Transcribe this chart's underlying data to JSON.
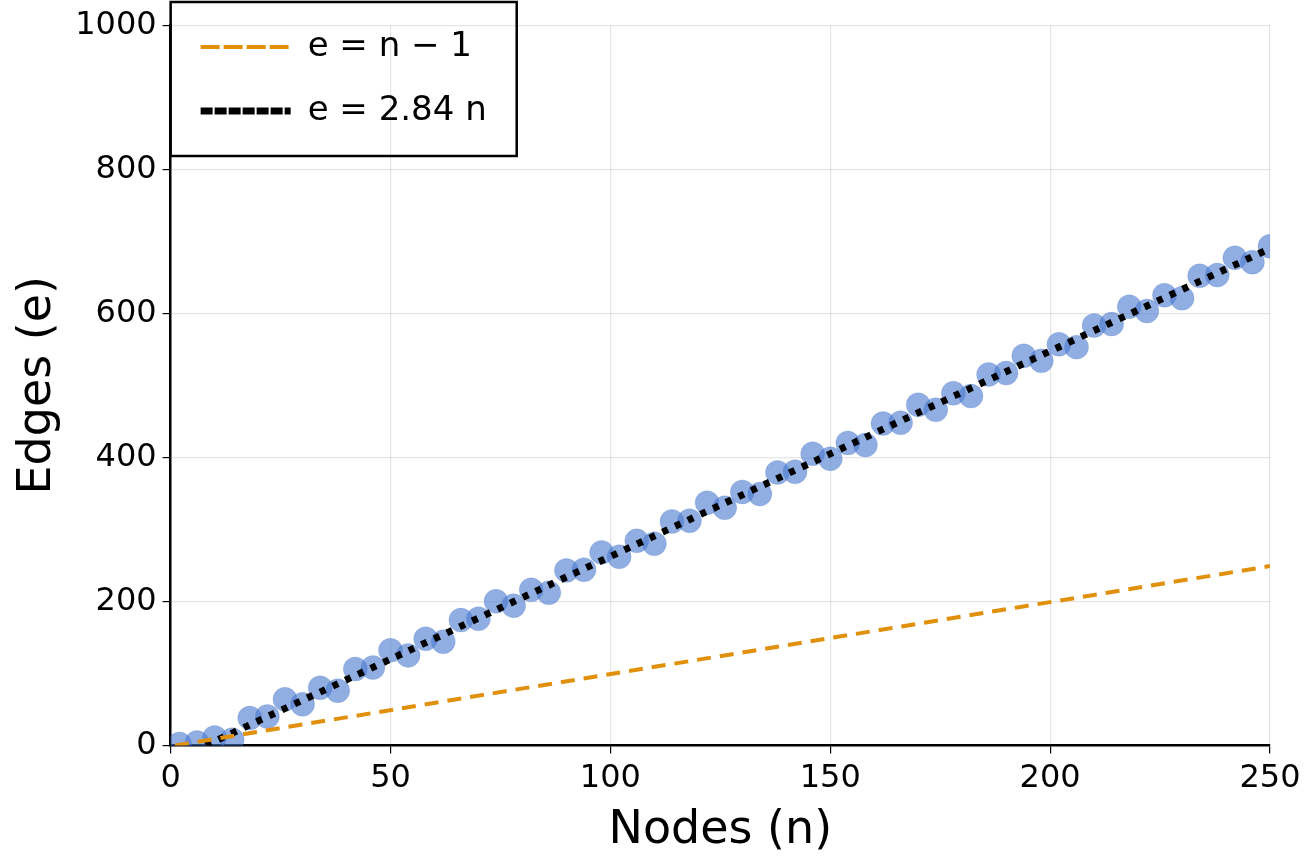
{
  "chart_data": {
    "type": "scatter",
    "xlabel": "Nodes (n)",
    "ylabel": "Edges (e)",
    "xlim": [
      0,
      250
    ],
    "xticks": [
      0,
      50,
      100,
      150,
      200,
      250
    ],
    "ylim": [
      0,
      1000
    ],
    "yticks": [
      0,
      200,
      400,
      600,
      800,
      1000
    ],
    "grid": true,
    "legend": "top left",
    "marker": "circle",
    "series": [
      {
        "color": "#4878cf",
        "x": [
          2,
          6,
          10,
          14,
          18,
          22,
          26,
          30,
          34,
          38,
          42,
          46,
          50,
          54,
          58,
          62,
          66,
          70,
          74,
          78,
          82,
          86,
          90,
          94,
          98,
          102,
          106,
          110,
          114,
          118,
          122,
          126,
          130,
          134,
          138,
          142,
          146,
          150,
          154,
          158,
          162,
          166,
          170,
          174,
          178,
          182,
          186,
          190,
          194,
          198,
          202,
          206,
          210,
          214,
          218,
          222,
          226,
          230,
          234,
          238,
          242,
          246,
          250
        ],
        "values": [
          2,
          4,
          11,
          8,
          38,
          40,
          64,
          57,
          80,
          76,
          106,
          108,
          132,
          125,
          148,
          144,
          174,
          176,
          200,
          194,
          216,
          212,
          243,
          244,
          268,
          262,
          284,
          280,
          311,
          312,
          337,
          330,
          352,
          349,
          379,
          380,
          405,
          398,
          420,
          417,
          447,
          448,
          473,
          466,
          489,
          485,
          515,
          517,
          541,
          534,
          557,
          553,
          583,
          585,
          609,
          603,
          625,
          621,
          652,
          653,
          677,
          671,
          693
        ]
      },
      {
        "type": "line",
        "name": "e = n − 1",
        "color": "#e1900b",
        "line_style": "dashed",
        "marker": "none",
        "x": [
          1,
          250
        ],
        "values": [
          0,
          249
        ]
      },
      {
        "type": "line",
        "name": "e = 2.84 n",
        "color": "#000000",
        "line_style": "dotted",
        "marker": "none",
        "x": [
          8,
          250
        ],
        "values": [
          0,
          690
        ]
      }
    ]
  }
}
